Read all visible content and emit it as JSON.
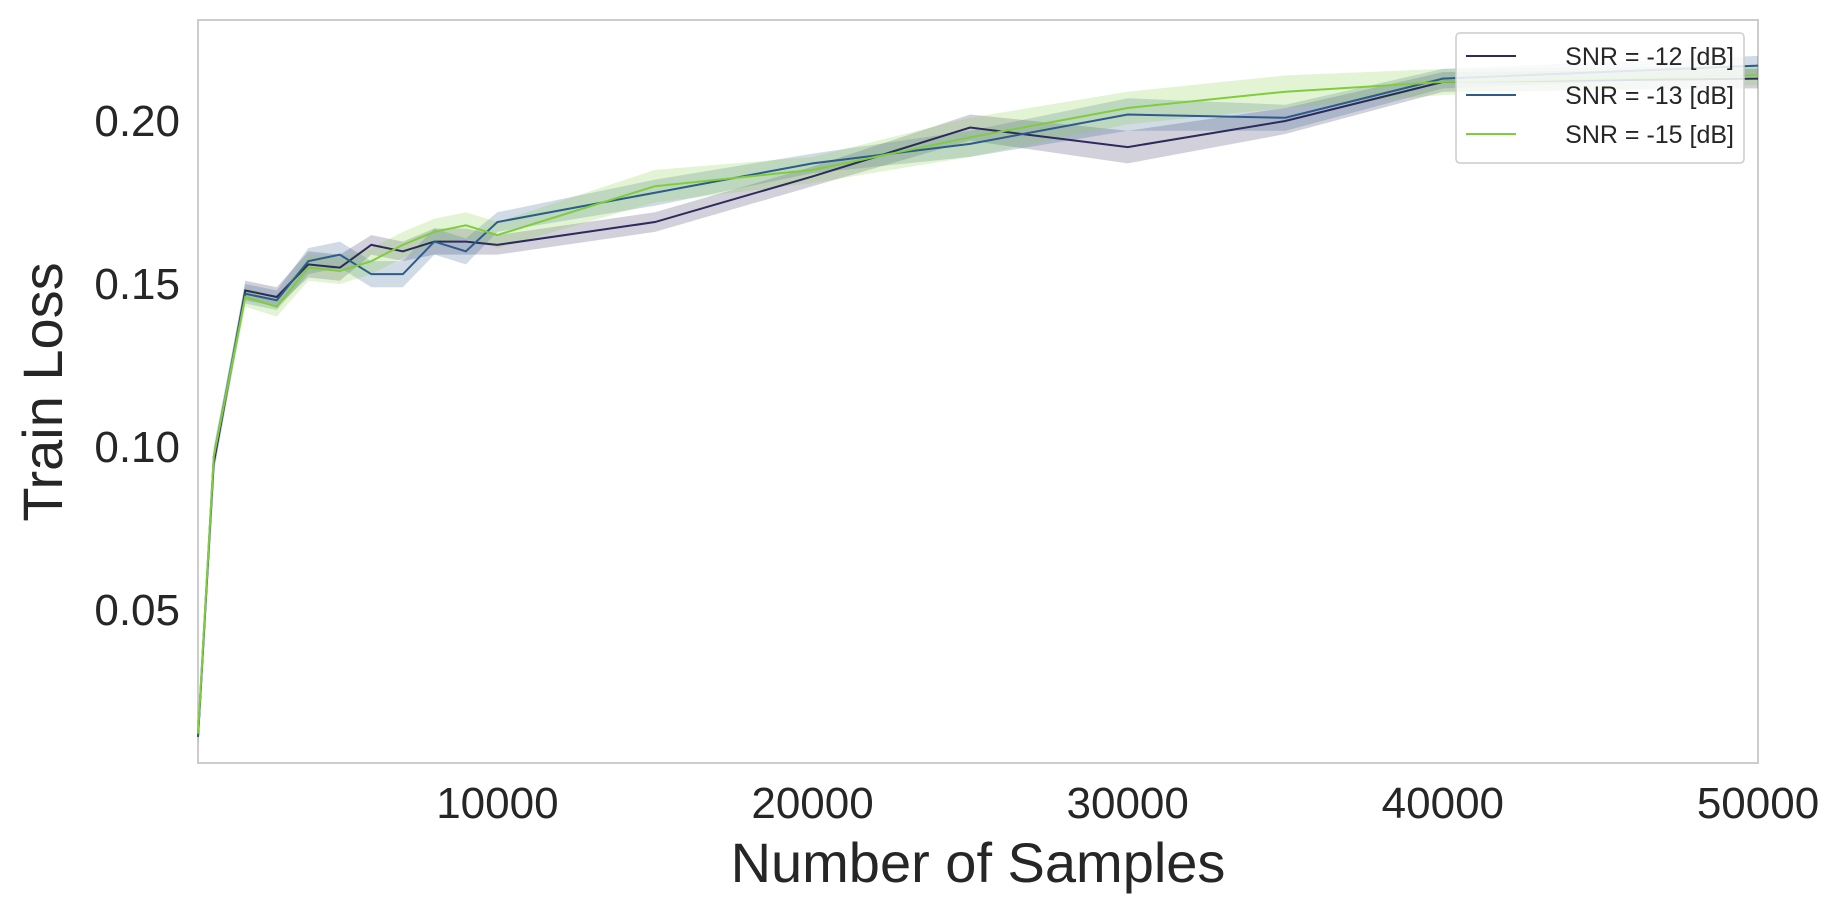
{
  "chart_data": {
    "type": "line",
    "title": "",
    "xlabel": "Number of Samples",
    "ylabel": "Train Loss",
    "xlim": [
      500,
      50000
    ],
    "ylim": [
      0.003,
      0.231
    ],
    "xticks": [
      10000,
      20000,
      30000,
      40000,
      50000
    ],
    "xtick_labels": [
      "10000",
      "20000",
      "30000",
      "40000",
      "50000"
    ],
    "yticks": [
      0.05,
      0.1,
      0.15,
      0.2
    ],
    "ytick_labels": [
      "0.05",
      "0.10",
      "0.15",
      "0.20"
    ],
    "grid": false,
    "legend_position": "top-right",
    "confidence_band": true,
    "x": [
      500,
      1000,
      2000,
      3000,
      4000,
      5000,
      6000,
      7000,
      8000,
      9000,
      10000,
      15000,
      20000,
      25000,
      30000,
      35000,
      40000,
      50000
    ],
    "series": [
      {
        "name": "SNR = -12 [dB]",
        "color": "#2d2a5c",
        "values": [
          0.011,
          0.095,
          0.148,
          0.146,
          0.156,
          0.155,
          0.162,
          0.16,
          0.163,
          0.163,
          0.162,
          0.169,
          0.183,
          0.198,
          0.192,
          0.2,
          0.212,
          0.213
        ],
        "spread": [
          0.002,
          0.003,
          0.003,
          0.003,
          0.004,
          0.004,
          0.003,
          0.003,
          0.004,
          0.004,
          0.003,
          0.003,
          0.003,
          0.004,
          0.005,
          0.004,
          0.003,
          0.003
        ]
      },
      {
        "name": "SNR = -13 [dB]",
        "color": "#2b5c8a",
        "values": [
          0.011,
          0.097,
          0.147,
          0.145,
          0.157,
          0.159,
          0.153,
          0.153,
          0.163,
          0.16,
          0.169,
          0.178,
          0.187,
          0.193,
          0.202,
          0.201,
          0.213,
          0.217
        ],
        "spread": [
          0.002,
          0.003,
          0.003,
          0.003,
          0.004,
          0.004,
          0.004,
          0.004,
          0.004,
          0.004,
          0.003,
          0.004,
          0.003,
          0.004,
          0.005,
          0.004,
          0.003,
          0.003
        ]
      },
      {
        "name": "SNR = -15 [dB]",
        "color": "#7fcd3d",
        "values": [
          0.012,
          0.097,
          0.146,
          0.143,
          0.155,
          0.154,
          0.157,
          0.162,
          0.166,
          0.168,
          0.165,
          0.18,
          0.185,
          0.195,
          0.204,
          0.209,
          0.212,
          0.214
        ],
        "spread": [
          0.002,
          0.003,
          0.003,
          0.003,
          0.004,
          0.004,
          0.004,
          0.004,
          0.004,
          0.004,
          0.004,
          0.005,
          0.004,
          0.006,
          0.005,
          0.005,
          0.004,
          0.003
        ]
      }
    ]
  }
}
